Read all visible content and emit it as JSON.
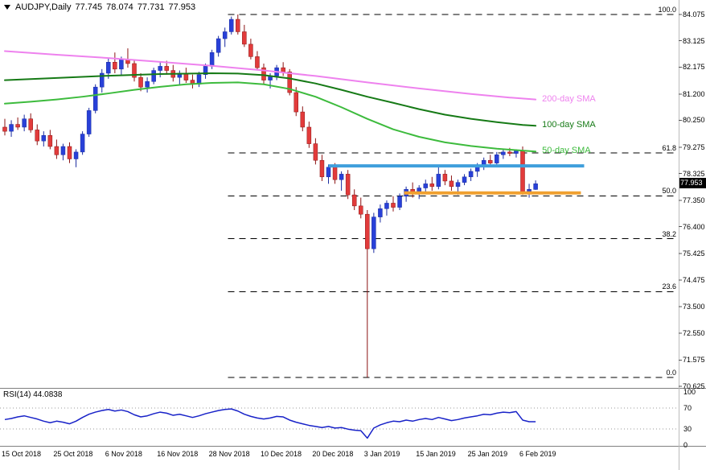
{
  "title": {
    "symbol": "AUDJPY,Daily",
    "open": "77.745",
    "high": "78.074",
    "low": "77.731",
    "close": "77.953"
  },
  "colors": {
    "bull": "#2840d8",
    "bull_wick": "#1a2ca0",
    "bear": "#e23b3b",
    "bear_wick": "#8c1414",
    "fib_line": "#000000",
    "separator": "#808080",
    "axis_border": "#bbbbbb",
    "rsi_guide": "#999999"
  },
  "chart_data": {
    "type": "candlestick",
    "symbol": "AUDJPY",
    "timeframe": "Daily",
    "current_price": 77.953,
    "current_price_label": "77.953",
    "price_axis": {
      "max": 84.075,
      "min": 70.625,
      "labels": [
        "84.075",
        "83.125",
        "82.175",
        "81.200",
        "80.250",
        "79.275",
        "78.325",
        "77.350",
        "76.400",
        "75.425",
        "74.475",
        "73.500",
        "72.550",
        "71.575",
        "70.625"
      ]
    },
    "time_axis": [
      {
        "label": "15 Oct 2018",
        "index": 0
      },
      {
        "label": "25 Oct 2018",
        "index": 8
      },
      {
        "label": "6 Nov 2018",
        "index": 16
      },
      {
        "label": "16 Nov 2018",
        "index": 24
      },
      {
        "label": "28 Nov 2018",
        "index": 32
      },
      {
        "label": "10 Dec 2018",
        "index": 40
      },
      {
        "label": "20 Dec 2018",
        "index": 48
      },
      {
        "label": "3 Jan 2019",
        "index": 56
      },
      {
        "label": "15 Jan 2019",
        "index": 64
      },
      {
        "label": "25 Jan 2019",
        "index": 72
      },
      {
        "label": "6 Feb 2019",
        "index": 80
      }
    ],
    "candles": [
      [
        80.0,
        80.3,
        79.7,
        79.85
      ],
      [
        79.85,
        80.25,
        79.65,
        80.1
      ],
      [
        80.1,
        80.35,
        79.9,
        80.0
      ],
      [
        80.0,
        80.45,
        79.85,
        80.3
      ],
      [
        80.3,
        80.5,
        79.8,
        79.9
      ],
      [
        79.9,
        80.1,
        79.35,
        79.5
      ],
      [
        79.5,
        79.85,
        79.3,
        79.7
      ],
      [
        79.7,
        79.9,
        79.2,
        79.3
      ],
      [
        79.3,
        79.55,
        78.85,
        79.0
      ],
      [
        79.0,
        79.4,
        78.8,
        79.3
      ],
      [
        79.3,
        79.45,
        78.7,
        78.85
      ],
      [
        78.85,
        79.2,
        78.55,
        79.1
      ],
      [
        79.1,
        79.85,
        79.0,
        79.75
      ],
      [
        79.75,
        80.7,
        79.65,
        80.6
      ],
      [
        80.6,
        81.55,
        80.5,
        81.45
      ],
      [
        81.45,
        82.1,
        81.25,
        81.95
      ],
      [
        81.95,
        82.5,
        81.75,
        82.35
      ],
      [
        82.35,
        82.7,
        81.95,
        82.1
      ],
      [
        82.1,
        82.55,
        81.85,
        82.45
      ],
      [
        82.45,
        82.85,
        82.15,
        82.3
      ],
      [
        82.3,
        82.45,
        81.65,
        81.8
      ],
      [
        81.8,
        81.95,
        81.3,
        81.45
      ],
      [
        81.45,
        81.8,
        81.25,
        81.65
      ],
      [
        81.65,
        82.15,
        81.55,
        82.05
      ],
      [
        82.05,
        82.35,
        81.8,
        82.2
      ],
      [
        82.2,
        82.4,
        81.9,
        82.05
      ],
      [
        82.05,
        82.25,
        81.65,
        81.8
      ],
      [
        81.8,
        82.05,
        81.55,
        81.95
      ],
      [
        81.95,
        82.15,
        81.6,
        81.7
      ],
      [
        81.7,
        81.9,
        81.4,
        81.55
      ],
      [
        81.55,
        82.0,
        81.45,
        81.9
      ],
      [
        81.9,
        82.3,
        81.75,
        82.2
      ],
      [
        82.2,
        82.8,
        82.1,
        82.7
      ],
      [
        82.7,
        83.3,
        82.55,
        83.2
      ],
      [
        83.2,
        83.6,
        82.9,
        83.45
      ],
      [
        83.45,
        84.0,
        83.35,
        83.9
      ],
      [
        83.9,
        84.075,
        83.35,
        83.45
      ],
      [
        83.45,
        83.7,
        82.9,
        83.0
      ],
      [
        83.0,
        83.2,
        82.45,
        82.55
      ],
      [
        82.55,
        82.75,
        82.05,
        82.15
      ],
      [
        82.15,
        82.3,
        81.55,
        81.7
      ],
      [
        81.7,
        81.95,
        81.4,
        81.85
      ],
      [
        81.85,
        82.25,
        81.7,
        82.15
      ],
      [
        82.15,
        82.35,
        81.85,
        82.0
      ],
      [
        82.0,
        82.1,
        81.15,
        81.25
      ],
      [
        81.25,
        81.45,
        80.4,
        80.55
      ],
      [
        80.55,
        80.75,
        79.85,
        80.0
      ],
      [
        80.0,
        80.2,
        79.25,
        79.4
      ],
      [
        79.4,
        79.6,
        78.65,
        78.8
      ],
      [
        78.8,
        79.0,
        78.05,
        78.2
      ],
      [
        78.2,
        78.65,
        77.95,
        78.55
      ],
      [
        78.55,
        78.7,
        77.95,
        78.1
      ],
      [
        78.1,
        78.4,
        77.7,
        78.3
      ],
      [
        78.3,
        78.45,
        77.4,
        77.55
      ],
      [
        77.55,
        77.75,
        77.0,
        77.15
      ],
      [
        77.15,
        77.45,
        76.7,
        76.85
      ],
      [
        76.85,
        77.0,
        70.95,
        75.6
      ],
      [
        75.6,
        76.9,
        75.45,
        76.75
      ],
      [
        76.75,
        77.2,
        76.55,
        77.05
      ],
      [
        77.05,
        77.35,
        76.8,
        77.25
      ],
      [
        77.25,
        77.5,
        76.95,
        77.1
      ],
      [
        77.1,
        77.6,
        77.0,
        77.5
      ],
      [
        77.5,
        77.85,
        77.3,
        77.75
      ],
      [
        77.75,
        78.0,
        77.45,
        77.6
      ],
      [
        77.6,
        77.9,
        77.4,
        77.8
      ],
      [
        77.8,
        78.1,
        77.6,
        77.95
      ],
      [
        77.95,
        78.2,
        77.7,
        77.85
      ],
      [
        77.85,
        78.55,
        77.75,
        78.3
      ],
      [
        78.3,
        78.45,
        77.9,
        78.05
      ],
      [
        78.05,
        78.25,
        77.7,
        77.85
      ],
      [
        77.85,
        78.1,
        77.55,
        78.0
      ],
      [
        78.0,
        78.3,
        77.9,
        78.2
      ],
      [
        78.2,
        78.5,
        78.05,
        78.4
      ],
      [
        78.4,
        78.7,
        78.2,
        78.6
      ],
      [
        78.6,
        78.9,
        78.45,
        78.8
      ],
      [
        78.8,
        79.0,
        78.55,
        78.7
      ],
      [
        78.7,
        79.1,
        78.6,
        79.0
      ],
      [
        79.0,
        79.2,
        78.85,
        79.1
      ],
      [
        79.1,
        79.25,
        78.95,
        79.05
      ],
      [
        79.05,
        79.2,
        78.9,
        79.15
      ],
      [
        79.15,
        79.3,
        77.55,
        77.65
      ],
      [
        77.65,
        77.95,
        77.45,
        77.75
      ],
      [
        77.745,
        78.074,
        77.731,
        77.953
      ]
    ],
    "sma_200": {
      "label": "200-day SMA",
      "color": "#ee82ee",
      "points": [
        [
          0,
          82.75
        ],
        [
          8,
          82.62
        ],
        [
          16,
          82.5
        ],
        [
          24,
          82.36
        ],
        [
          32,
          82.22
        ],
        [
          40,
          82.05
        ],
        [
          48,
          81.85
        ],
        [
          56,
          81.62
        ],
        [
          64,
          81.4
        ],
        [
          72,
          81.2
        ],
        [
          78,
          81.07
        ],
        [
          82,
          81.0
        ]
      ]
    },
    "sma_100": {
      "label": "100-day SMA",
      "color": "#167a16",
      "points": [
        [
          0,
          81.7
        ],
        [
          8,
          81.78
        ],
        [
          16,
          81.86
        ],
        [
          24,
          81.92
        ],
        [
          32,
          81.95
        ],
        [
          36,
          81.94
        ],
        [
          40,
          81.88
        ],
        [
          44,
          81.76
        ],
        [
          48,
          81.58
        ],
        [
          52,
          81.35
        ],
        [
          56,
          81.1
        ],
        [
          60,
          80.88
        ],
        [
          64,
          80.65
        ],
        [
          68,
          80.45
        ],
        [
          72,
          80.3
        ],
        [
          76,
          80.18
        ],
        [
          80,
          80.08
        ],
        [
          82,
          80.05
        ]
      ]
    },
    "sma_50": {
      "label": "50-day SMA",
      "color": "#3dbb3d",
      "points": [
        [
          0,
          80.85
        ],
        [
          4,
          80.92
        ],
        [
          8,
          81.0
        ],
        [
          12,
          81.1
        ],
        [
          16,
          81.22
        ],
        [
          20,
          81.35
        ],
        [
          24,
          81.46
        ],
        [
          28,
          81.55
        ],
        [
          32,
          81.6
        ],
        [
          36,
          81.62
        ],
        [
          40,
          81.55
        ],
        [
          44,
          81.38
        ],
        [
          48,
          81.1
        ],
        [
          52,
          80.72
        ],
        [
          56,
          80.3
        ],
        [
          60,
          79.92
        ],
        [
          64,
          79.65
        ],
        [
          68,
          79.45
        ],
        [
          72,
          79.32
        ],
        [
          76,
          79.22
        ],
        [
          80,
          79.15
        ],
        [
          82,
          79.12
        ]
      ]
    },
    "fibonacci": {
      "high": 84.075,
      "low": 70.95,
      "from_index": 34.5,
      "levels": [
        {
          "pct": 100,
          "label": "100.0"
        },
        {
          "pct": 61.8,
          "label": "61.8"
        },
        {
          "pct": 50,
          "label": "50.0"
        },
        {
          "pct": 38.2,
          "label": "38.2"
        },
        {
          "pct": 23.6,
          "label": "23.6"
        },
        {
          "pct": 0,
          "label": "0.0"
        }
      ]
    },
    "hlines": [
      {
        "name": "resistance-line",
        "price": 78.6,
        "from_index": 50,
        "to_index": 89.5,
        "color": "#3f9fdc",
        "width": 4
      },
      {
        "name": "support-line",
        "price": 77.62,
        "from_index": 61.7,
        "to_index": 89,
        "color": "#f0a030",
        "width": 4
      }
    ],
    "rsi": {
      "label": "RSI(14)",
      "value_label": "44.0838",
      "color": "#1822c8",
      "levels": [
        "100",
        "70",
        "30",
        "0"
      ],
      "guide_levels": [
        70,
        30
      ],
      "values": [
        48,
        50,
        53,
        55,
        52,
        49,
        45,
        42,
        45,
        43,
        40,
        45,
        52,
        58,
        62,
        65,
        67,
        64,
        66,
        63,
        57,
        53,
        55,
        59,
        62,
        60,
        56,
        58,
        55,
        52,
        55,
        59,
        62,
        65,
        67,
        68,
        64,
        58,
        54,
        51,
        49,
        51,
        54,
        53,
        47,
        43,
        40,
        37,
        35,
        33,
        35,
        32,
        33,
        30,
        28,
        27,
        13,
        32,
        38,
        42,
        45,
        44,
        47,
        45,
        48,
        50,
        48,
        52,
        49,
        46,
        48,
        51,
        53,
        55,
        58,
        57,
        60,
        62,
        61,
        63,
        47,
        44,
        44
      ]
    }
  }
}
